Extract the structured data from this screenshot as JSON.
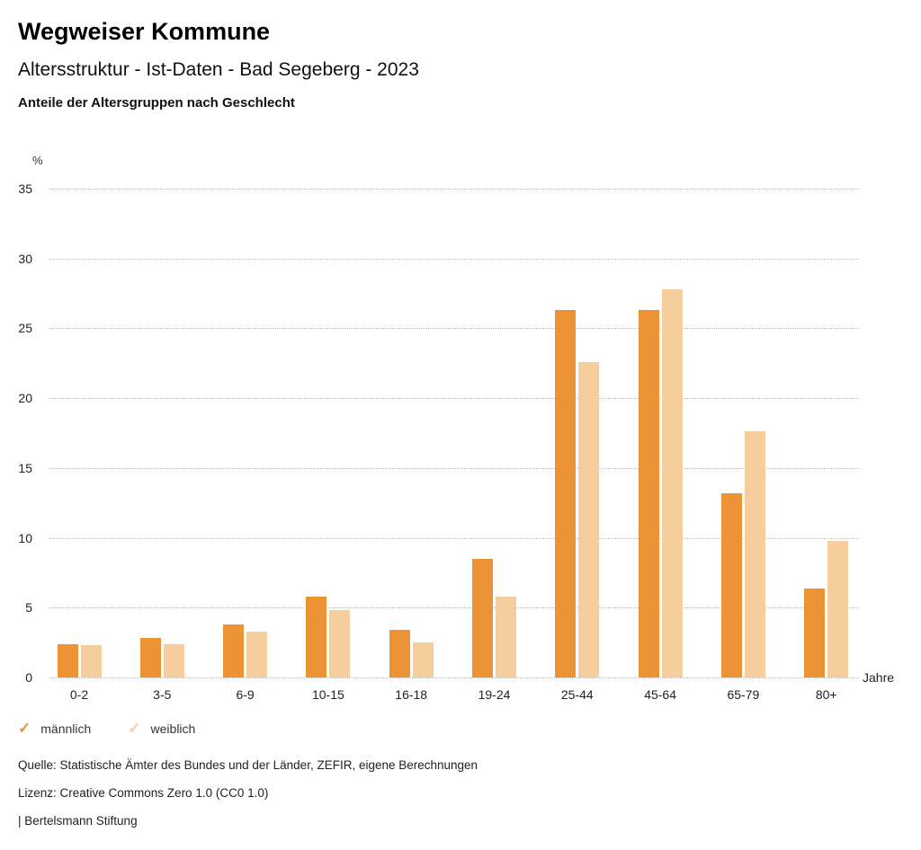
{
  "header": {
    "title": "Wegweiser Kommune",
    "subtitle": "Altersstruktur - Ist-Daten - Bad Segeberg - 2023",
    "subsubtitle": "Anteile der Altersgruppen nach Geschlecht"
  },
  "chart_data": {
    "type": "bar",
    "title": "Altersstruktur - Ist-Daten - Bad Segeberg - 2023",
    "subtitle": "Anteile der Altersgruppen nach Geschlecht",
    "unit_label": "%",
    "xlabel": "Jahre",
    "ylabel": "%",
    "ylim": [
      0,
      35
    ],
    "yticks": [
      0,
      5,
      10,
      15,
      20,
      25,
      30,
      35
    ],
    "grid": "horizontal-dotted",
    "legend_position": "bottom-left",
    "categories": [
      "0-2",
      "3-5",
      "6-9",
      "10-15",
      "16-18",
      "19-24",
      "25-44",
      "45-64",
      "65-79",
      "80+"
    ],
    "series": [
      {
        "name": "männlich",
        "color": "#EC9435",
        "values": [
          2.4,
          2.8,
          3.8,
          5.8,
          3.4,
          8.5,
          26.3,
          26.3,
          13.2,
          6.4
        ]
      },
      {
        "name": "weiblich",
        "color": "#F6CD9C",
        "values": [
          2.3,
          2.4,
          3.3,
          4.8,
          2.5,
          5.8,
          22.6,
          27.8,
          17.6,
          9.8
        ]
      }
    ]
  },
  "legend": {
    "check_icon": "✓"
  },
  "footer": {
    "source": "Quelle: Statistische Ämter des Bundes und der Länder, ZEFIR, eigene Berechnungen",
    "license": "Lizenz: Creative Commons Zero 1.0 (CC0 1.0)",
    "attribution": "| Bertelsmann Stiftung"
  }
}
